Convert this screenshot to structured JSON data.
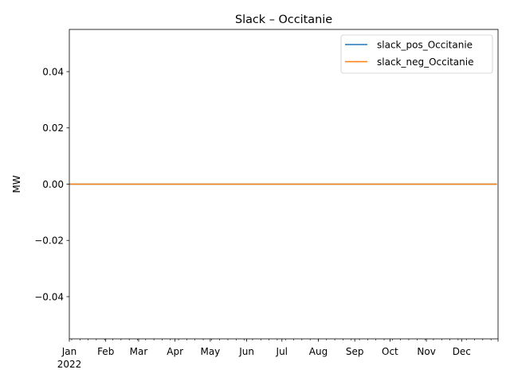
{
  "chart_data": {
    "type": "line",
    "title": "Slack – Occitanie",
    "xlabel": "",
    "ylabel": "MW",
    "x_start": "2022-01-01",
    "x_end": "2022-12-31",
    "x_ticks_major": [
      {
        "date": "2022-01-01",
        "label": "Jan"
      },
      {
        "date": "2022-02-01",
        "label": "Feb"
      },
      {
        "date": "2022-03-01",
        "label": "Mar"
      },
      {
        "date": "2022-04-01",
        "label": "Apr"
      },
      {
        "date": "2022-05-01",
        "label": "May"
      },
      {
        "date": "2022-06-01",
        "label": "Jun"
      },
      {
        "date": "2022-07-01",
        "label": "Jul"
      },
      {
        "date": "2022-08-01",
        "label": "Aug"
      },
      {
        "date": "2022-09-01",
        "label": "Sep"
      },
      {
        "date": "2022-10-01",
        "label": "Oct"
      },
      {
        "date": "2022-11-01",
        "label": "Nov"
      },
      {
        "date": "2022-12-01",
        "label": "Dec"
      }
    ],
    "x_year_label": "2022",
    "ylim": [
      -0.055,
      0.055
    ],
    "y_ticks": [
      -0.04,
      -0.02,
      0.0,
      0.02,
      0.04
    ],
    "y_tick_labels": [
      "−0.04",
      "−0.02",
      "0.00",
      "0.02",
      "0.04"
    ],
    "grid": false,
    "legend_position": "top-right",
    "series": [
      {
        "name": "slack_pos_Occitanie",
        "color": "#1f77b4",
        "x": [
          "2022-01-01",
          "2022-12-31"
        ],
        "values": [
          0,
          0
        ]
      },
      {
        "name": "slack_neg_Occitanie",
        "color": "#ff7f0e",
        "x": [
          "2022-01-01",
          "2022-12-31"
        ],
        "values": [
          0,
          0
        ]
      }
    ]
  }
}
